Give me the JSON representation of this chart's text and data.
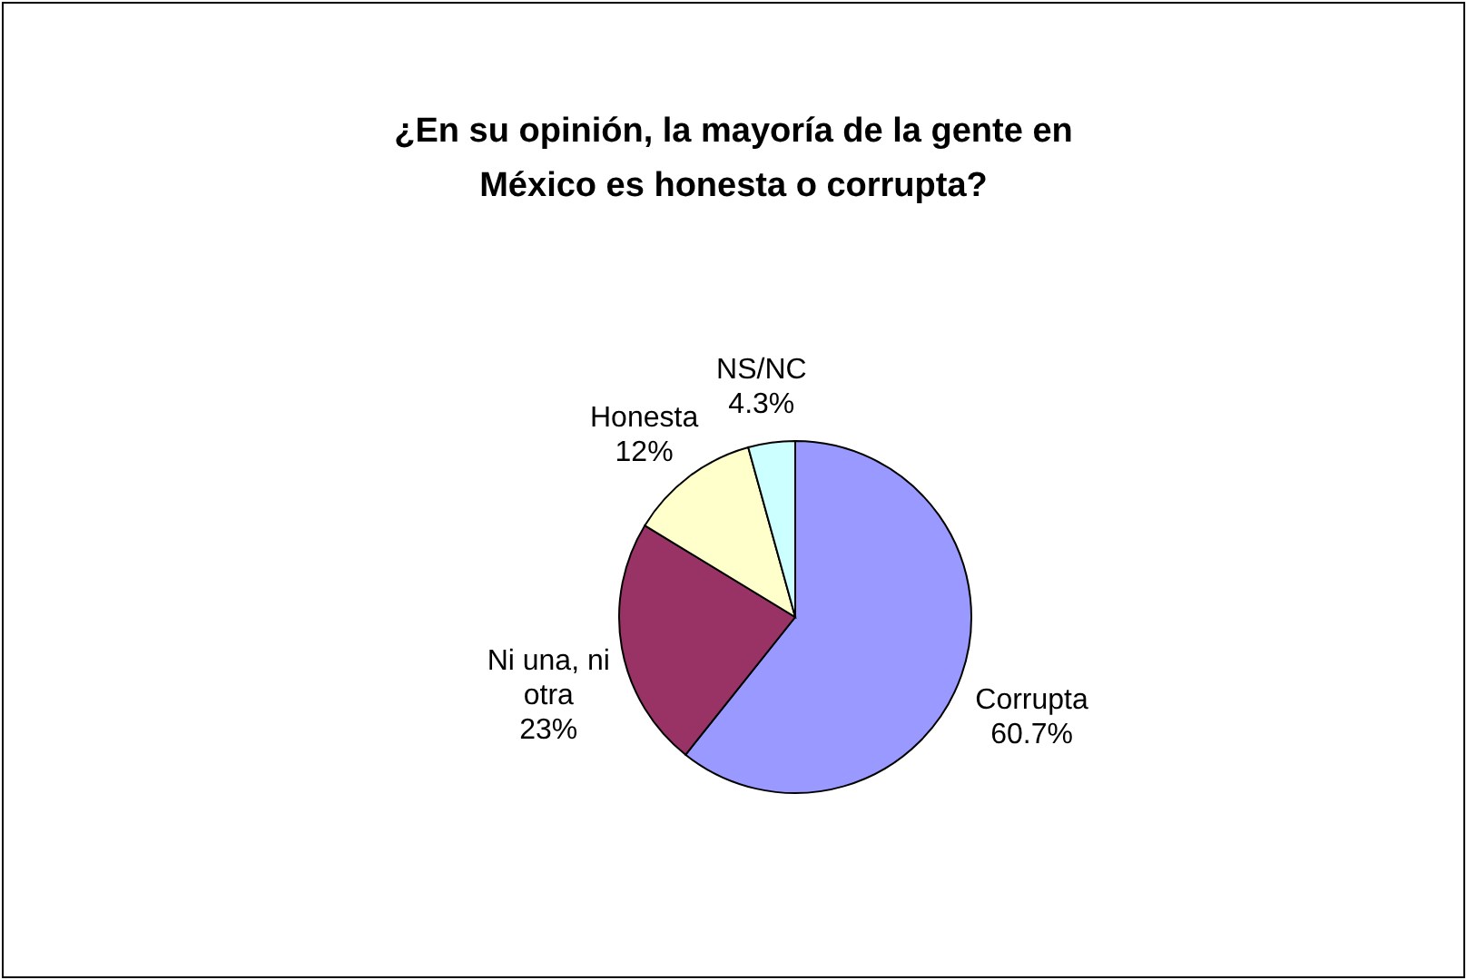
{
  "chart_data": {
    "type": "pie",
    "title": "¿En su opinión, la mayoría de la gente en México es honesta o corrupta?",
    "categories": [
      "Corrupta",
      "Ni una, ni otra",
      "Honesta",
      "NS/NC"
    ],
    "values": [
      60.7,
      23,
      12,
      4.3
    ],
    "value_labels": [
      "60.7%",
      "23%",
      "12%",
      "4.3%"
    ],
    "colors": [
      "#9999ff",
      "#993366",
      "#ffffcc",
      "#ccffff"
    ],
    "legend": false
  }
}
